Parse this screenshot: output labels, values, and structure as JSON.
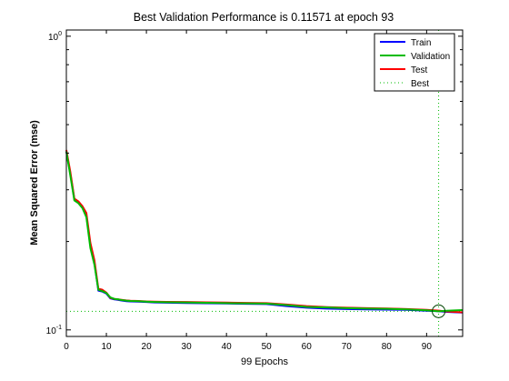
{
  "chart_data": {
    "type": "line",
    "title": "Best Validation Performance is 0.11571 at epoch 93",
    "xlabel": "99 Epochs",
    "ylabel": "Mean Squared Error  (mse)",
    "xlim": [
      0,
      99
    ],
    "ylim": [
      0.095,
      1.05
    ],
    "yscale": "log",
    "grid": false,
    "legend_position": "top-right",
    "x_ticks": [
      0,
      10,
      20,
      30,
      40,
      50,
      60,
      70,
      80,
      90
    ],
    "x_tick_labels": [
      "0",
      "10",
      "20",
      "30",
      "40",
      "50",
      "60",
      "70",
      "80",
      "90"
    ],
    "y_ticks": [
      0.1,
      1
    ],
    "y_tick_labels": [
      {
        "base": "10",
        "exp": "-1"
      },
      {
        "base": "10",
        "exp": "0"
      }
    ],
    "x": [
      0,
      1,
      2,
      3,
      4,
      5,
      6,
      7,
      8,
      9,
      10,
      11,
      12,
      13,
      14,
      15,
      16,
      18,
      20,
      22,
      25,
      30,
      35,
      40,
      45,
      50,
      55,
      60,
      65,
      70,
      75,
      80,
      85,
      90,
      93,
      95,
      99
    ],
    "series": [
      {
        "name": "Train",
        "color": "#0000ff",
        "values": [
          0.405,
          0.34,
          0.278,
          0.272,
          0.262,
          0.245,
          0.195,
          0.17,
          0.136,
          0.135,
          0.133,
          0.128,
          0.127,
          0.1265,
          0.1258,
          0.1252,
          0.125,
          0.1248,
          0.1244,
          0.124,
          0.1238,
          0.1235,
          0.1232,
          0.123,
          0.1227,
          0.1225,
          0.1205,
          0.119,
          0.1182,
          0.1178,
          0.1175,
          0.1172,
          0.117,
          0.1162,
          0.1158,
          0.1152,
          0.1145
        ]
      },
      {
        "name": "Validation",
        "color": "#00bb00",
        "values": [
          0.405,
          0.335,
          0.276,
          0.27,
          0.26,
          0.242,
          0.19,
          0.167,
          0.137,
          0.1355,
          0.1335,
          0.129,
          0.1275,
          0.127,
          0.1262,
          0.1258,
          0.1255,
          0.1252,
          0.1248,
          0.1245,
          0.1242,
          0.124,
          0.1237,
          0.1233,
          0.1231,
          0.1229,
          0.1215,
          0.1198,
          0.1192,
          0.1186,
          0.1182,
          0.118,
          0.1175,
          0.1166,
          0.11571,
          0.1162,
          0.1168
        ]
      },
      {
        "name": "Test",
        "color": "#ff0000",
        "values": [
          0.41,
          0.345,
          0.28,
          0.274,
          0.264,
          0.25,
          0.198,
          0.173,
          0.138,
          0.137,
          0.134,
          0.1285,
          0.1275,
          0.127,
          0.1265,
          0.126,
          0.1257,
          0.1254,
          0.125,
          0.1248,
          0.1246,
          0.1244,
          0.1241,
          0.1239,
          0.1236,
          0.1233,
          0.122,
          0.1205,
          0.1196,
          0.119,
          0.1186,
          0.1183,
          0.1178,
          0.117,
          0.1163,
          0.1156,
          0.1148
        ]
      },
      {
        "name": "Best",
        "color": "#00bb00",
        "style": "dotted"
      }
    ],
    "best": {
      "epoch": 93,
      "value": 0.11571
    }
  }
}
